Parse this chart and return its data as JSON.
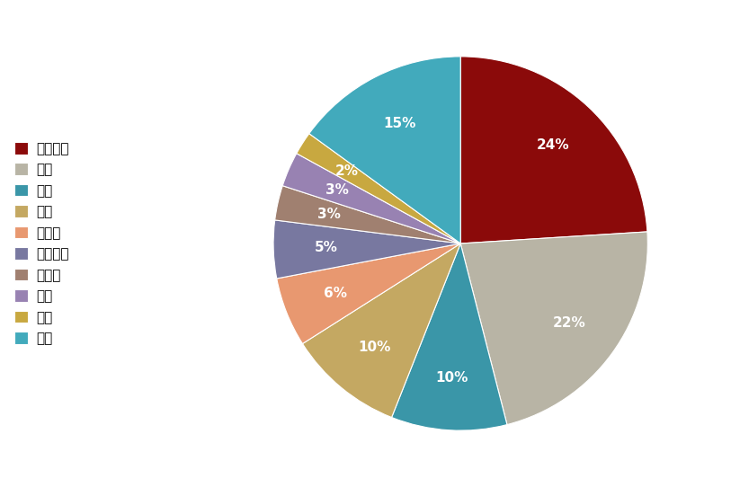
{
  "labels": [
    "中国大陆",
    "欧盟",
    "日本",
    "韩国",
    "土耳其",
    "中国台湾",
    "摩洛哥",
    "印度",
    "巴西",
    "其他"
  ],
  "values": [
    24,
    22,
    10,
    10,
    6,
    5,
    3,
    3,
    2,
    15
  ],
  "colors": [
    "#8B0A0A",
    "#B8B4A5",
    "#3A96A8",
    "#C4A862",
    "#E89870",
    "#7878A0",
    "#A08070",
    "#9882B2",
    "#C8A840",
    "#42AABC"
  ],
  "startangle": 90,
  "figsize": [
    8.13,
    5.42
  ],
  "dpi": 100,
  "background_color": "#FFFFFF",
  "pct_fontsize": 11,
  "legend_fontsize": 11,
  "pct_distance": 0.72
}
